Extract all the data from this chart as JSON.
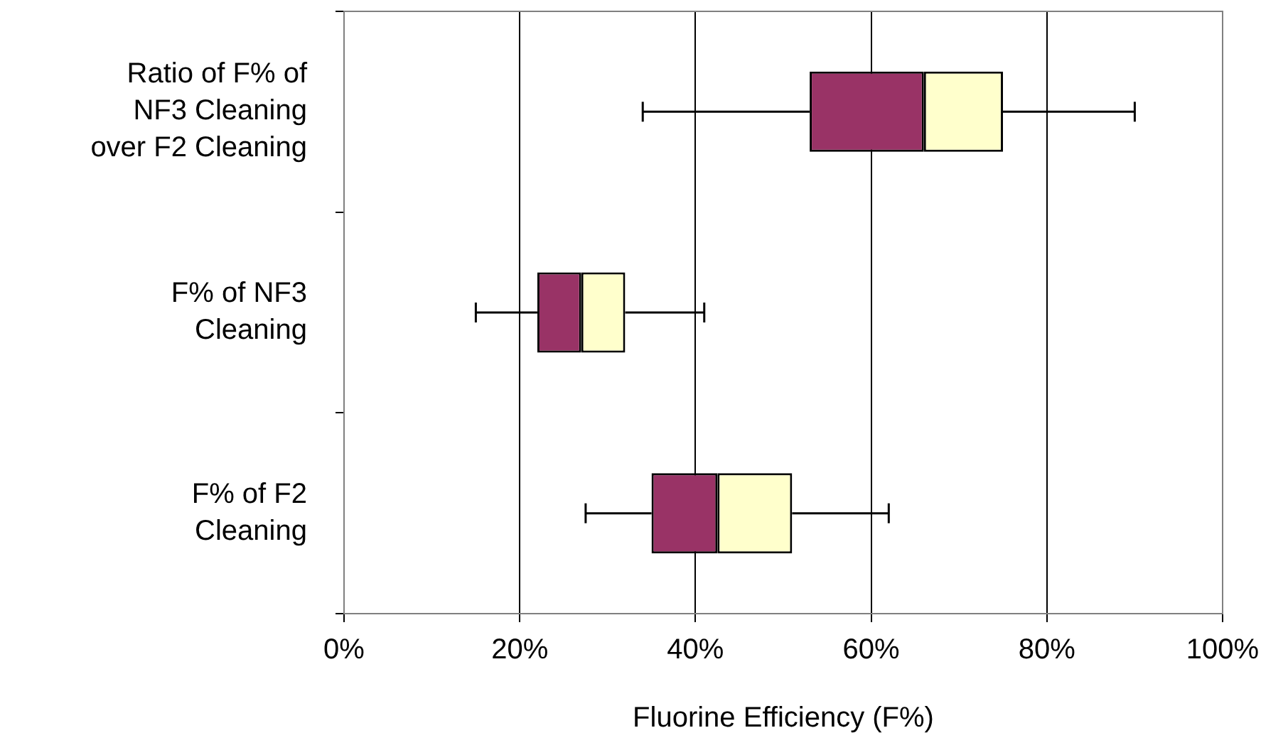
{
  "chart_data": {
    "type": "box",
    "orientation": "horizontal",
    "xlabel": "Fluorine Efficiency (F%)",
    "categories": [
      "Ratio of F% of\nNF3 Cleaning\nover F2 Cleaning",
      "F% of NF3\nCleaning",
      "F% of F2\nCleaning"
    ],
    "series": [
      {
        "color": "#ffffcc",
        "colors": [
          "#993366",
          "#993366",
          "#993366"
        ],
        "boxes": [
          {
            "low": 34,
            "q1": 53,
            "median": 66,
            "q3": 75,
            "high": 90
          },
          {
            "low": 15,
            "q1": 22,
            "median": 27,
            "q3": 32,
            "high": 41
          },
          {
            "low": 27.5,
            "q1": 35,
            "median": 42.5,
            "q3": 51,
            "high": 62
          }
        ]
      }
    ],
    "xlim": [
      0,
      100
    ],
    "xticks": [
      {
        "value": 0,
        "label": "0%"
      },
      {
        "value": 20,
        "label": "20%"
      },
      {
        "value": 40,
        "label": "40%"
      },
      {
        "value": 60,
        "label": "60%"
      },
      {
        "value": 80,
        "label": "80%"
      },
      {
        "value": 100,
        "label": "100%"
      }
    ],
    "grid": "x",
    "legend": false
  }
}
